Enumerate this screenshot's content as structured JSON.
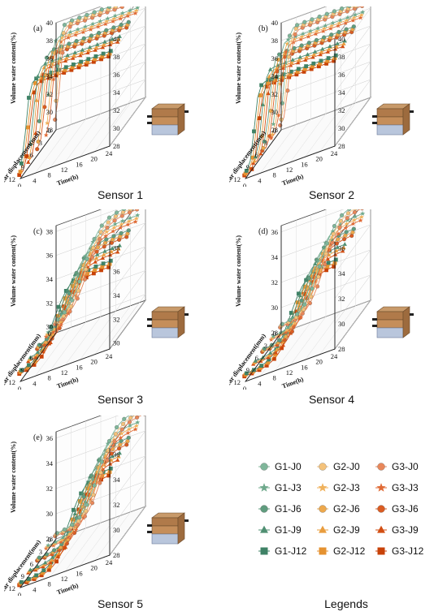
{
  "chart_data": [
    {
      "type": "line",
      "panel_label": "(a)",
      "caption": "Sensor 1",
      "zlabel": "Volume water content(%)",
      "xlabel": "Shear displacement(mm)",
      "ylabel": "Time(h)",
      "x_ticks": [
        "0",
        "3",
        "6",
        "9",
        "12"
      ],
      "y_ticks": [
        "0",
        "4",
        "8",
        "12",
        "16",
        "20",
        "24"
      ],
      "z_ticks": [
        "28",
        "30",
        "32",
        "34",
        "36",
        "38",
        "40"
      ],
      "zlim": [
        28,
        40
      ],
      "start": 28.5,
      "plateau": 39.5,
      "rise_center": 0.6
    },
    {
      "type": "line",
      "panel_label": "(b)",
      "caption": "Sensor 2",
      "zlabel": "Volume water content(%)",
      "xlabel": "Shear displacement(mm)",
      "ylabel": "Time(h)",
      "x_ticks": [
        "0",
        "3",
        "6",
        "9",
        "12"
      ],
      "y_ticks": [
        "0",
        "4",
        "8",
        "12",
        "16",
        "20",
        "24"
      ],
      "z_ticks": [
        "28",
        "30",
        "32",
        "34",
        "36",
        "38",
        "40"
      ],
      "zlim": [
        28,
        40
      ],
      "start": 28.5,
      "plateau": 39.0,
      "rise_center": 1.5
    },
    {
      "type": "line",
      "panel_label": "(c)",
      "caption": "Sensor 3",
      "zlabel": "Volume water content(%)",
      "xlabel": "Shear displacement(mm)",
      "ylabel": "Time(h)",
      "x_ticks": [
        "0",
        "3",
        "6",
        "9",
        "12"
      ],
      "y_ticks": [
        "0",
        "4",
        "8",
        "12",
        "16",
        "20",
        "24"
      ],
      "z_ticks": [
        "30",
        "32",
        "34",
        "36",
        "38"
      ],
      "zlim": [
        29.5,
        38.5
      ],
      "start": 30.2,
      "plateau": 37.8,
      "rise_center": 8
    },
    {
      "type": "line",
      "panel_label": "(d)",
      "caption": "Sensor 4",
      "zlabel": "Volume water content(%)",
      "xlabel": "Shear displacement(mm)",
      "ylabel": "Time(h)",
      "x_ticks": [
        "0",
        "3",
        "6",
        "9",
        "12"
      ],
      "y_ticks": [
        "0",
        "4",
        "8",
        "12",
        "16",
        "20",
        "24"
      ],
      "z_ticks": [
        "28",
        "30",
        "32",
        "34",
        "36"
      ],
      "zlim": [
        28,
        36.5
      ],
      "start": 28.5,
      "plateau": 36.0,
      "rise_center": 11
    },
    {
      "type": "line",
      "panel_label": "(e)",
      "caption": "Sensor 5",
      "zlabel": "Volume water content(%)",
      "xlabel": "Shear displacement(mm)",
      "ylabel": "Time(h)",
      "x_ticks": [
        "0",
        "3",
        "6",
        "9",
        "12"
      ],
      "y_ticks": [
        "0",
        "4",
        "8",
        "12",
        "16",
        "20",
        "24"
      ],
      "z_ticks": [
        "28",
        "30",
        "32",
        "34",
        "36"
      ],
      "zlim": [
        28,
        36.5
      ],
      "start": 28.3,
      "plateau": 35.8,
      "rise_center": 12
    }
  ],
  "legend": {
    "caption": "Legends",
    "items": [
      {
        "label": "G1-J0",
        "color": "#7fb69a",
        "marker": "circle"
      },
      {
        "label": "G2-J0",
        "color": "#f4c27a",
        "marker": "circle"
      },
      {
        "label": "G3-J0",
        "color": "#e8875a",
        "marker": "circle"
      },
      {
        "label": "G1-J3",
        "color": "#6fa98c",
        "marker": "star"
      },
      {
        "label": "G2-J3",
        "color": "#f0b25c",
        "marker": "star"
      },
      {
        "label": "G3-J3",
        "color": "#e06a35",
        "marker": "star"
      },
      {
        "label": "G1-J6",
        "color": "#5f9c7e",
        "marker": "circle-half"
      },
      {
        "label": "G2-J6",
        "color": "#eda84c",
        "marker": "circle-half"
      },
      {
        "label": "G3-J6",
        "color": "#da5c22",
        "marker": "circle-half"
      },
      {
        "label": "G1-J9",
        "color": "#4f8f72",
        "marker": "triangle"
      },
      {
        "label": "G2-J9",
        "color": "#e99d3e",
        "marker": "triangle"
      },
      {
        "label": "G3-J9",
        "color": "#d24e12",
        "marker": "triangle"
      },
      {
        "label": "G1-J12",
        "color": "#3f8266",
        "marker": "square"
      },
      {
        "label": "G2-J12",
        "color": "#e59230",
        "marker": "square"
      },
      {
        "label": "G3-J12",
        "color": "#c84208",
        "marker": "square"
      }
    ]
  }
}
